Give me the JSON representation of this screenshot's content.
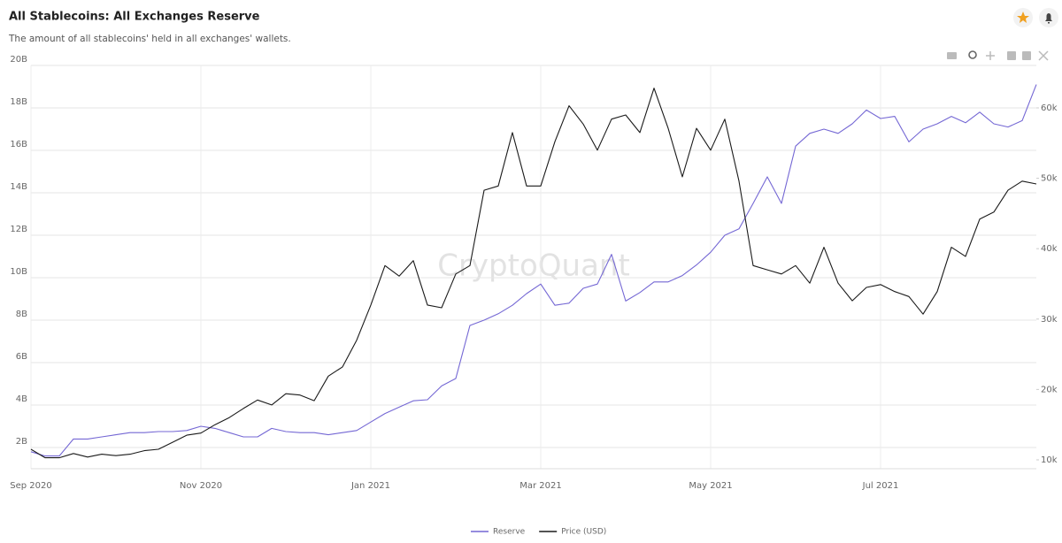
{
  "chart_data": {
    "type": "line",
    "title": "All Stablecoins: All Exchanges Reserve",
    "subtitle": "The amount of all stablecoins' held in all exchanges' wallets.",
    "watermark": "CryptoQuant",
    "categories": [
      "Sep 2020",
      null,
      null,
      null,
      null,
      null,
      null,
      null,
      null,
      null,
      null,
      null,
      "Nov 2020",
      null,
      null,
      null,
      null,
      null,
      null,
      null,
      null,
      null,
      null,
      null,
      "Jan 2021",
      null,
      null,
      null,
      null,
      null,
      null,
      null,
      null,
      null,
      null,
      null,
      "Mar 2021",
      null,
      null,
      null,
      null,
      null,
      null,
      null,
      null,
      null,
      null,
      null,
      "May 2021",
      null,
      null,
      null,
      null,
      null,
      null,
      null,
      null,
      null,
      null,
      null,
      "Jul 2021",
      null,
      null,
      null,
      null,
      null,
      null,
      null,
      null,
      null,
      null,
      null
    ],
    "series": [
      {
        "name": "Reserve",
        "color": "#7467d4",
        "values": [
          1.8,
          1.6,
          1.6,
          2.4,
          2.4,
          2.5,
          2.6,
          2.7,
          2.7,
          2.75,
          2.75,
          2.8,
          3.0,
          2.9,
          2.7,
          2.5,
          2.5,
          2.9,
          2.75,
          2.7,
          2.7,
          2.6,
          2.7,
          2.8,
          3.2,
          3.6,
          3.9,
          4.2,
          4.25,
          4.9,
          5.25,
          7.75,
          8.0,
          8.3,
          8.7,
          9.25,
          9.7,
          8.7,
          8.8,
          9.5,
          9.7,
          11.1,
          8.9,
          9.3,
          9.8,
          9.8,
          10.1,
          10.6,
          11.2,
          12.0,
          12.3,
          13.5,
          14.75,
          13.5,
          16.2,
          16.8,
          17.0,
          16.8,
          17.25,
          17.9,
          17.5,
          17.6,
          16.4,
          17.0,
          17.25,
          17.6,
          17.3,
          17.8,
          17.25,
          17.1,
          17.4,
          19.1
        ]
      },
      {
        "name": "Price (USD)",
        "color": "#1a1a1a",
        "axis": "y2",
        "values": [
          11.5,
          10.3,
          10.3,
          10.9,
          10.4,
          10.8,
          10.6,
          10.8,
          11.3,
          11.5,
          12.5,
          13.5,
          13.8,
          15.0,
          16.0,
          17.3,
          18.5,
          17.8,
          19.4,
          19.2,
          18.4,
          21.9,
          23.2,
          27.0,
          32.0,
          37.6,
          36.1,
          38.3,
          32.0,
          31.6,
          36.4,
          37.6,
          48.3,
          48.9,
          56.5,
          48.9,
          48.9,
          55.2,
          60.3,
          57.7,
          54.0,
          58.4,
          59.0,
          56.5,
          62.8,
          57.1,
          50.2,
          57.1,
          54.0,
          58.4,
          49.6,
          37.6,
          37.0,
          36.4,
          37.6,
          35.1,
          40.2,
          35.1,
          32.6,
          34.5,
          34.9,
          33.9,
          33.2,
          30.7,
          33.9,
          40.2,
          38.9,
          44.2,
          45.2,
          48.3,
          49.6,
          49.2
        ]
      }
    ],
    "ylim": [
      1,
      20
    ],
    "yticks": [
      {
        "value": 2,
        "label": "2B"
      },
      {
        "value": 4,
        "label": "4B"
      },
      {
        "value": 6,
        "label": "6B"
      },
      {
        "value": 8,
        "label": "8B"
      },
      {
        "value": 10,
        "label": "10B"
      },
      {
        "value": 12,
        "label": "12B"
      },
      {
        "value": 14,
        "label": "14B"
      },
      {
        "value": 16,
        "label": "16B"
      },
      {
        "value": 18,
        "label": "18B"
      },
      {
        "value": 20,
        "label": "20B"
      }
    ],
    "y2lim": [
      8.74,
      66.03
    ],
    "y2ticks": [
      {
        "value": 10,
        "label": "10k"
      },
      {
        "value": 20,
        "label": "20k"
      },
      {
        "value": 30,
        "label": "30k"
      },
      {
        "value": 40,
        "label": "40k"
      },
      {
        "value": 50,
        "label": "50k"
      },
      {
        "value": 60,
        "label": "60k"
      }
    ],
    "grid": true
  }
}
